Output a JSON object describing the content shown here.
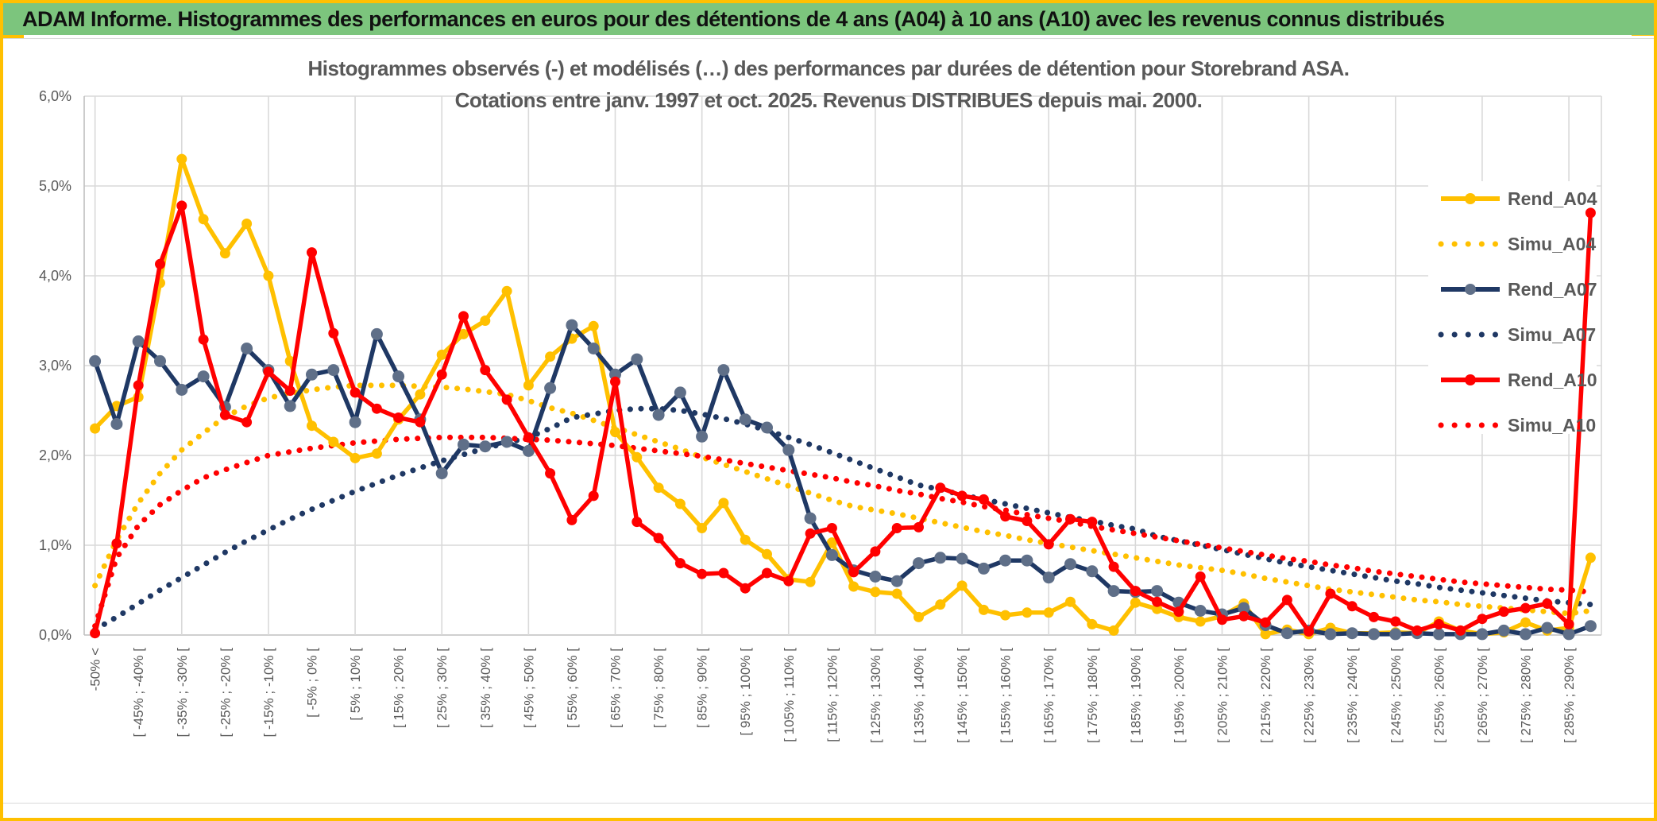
{
  "header": {
    "title": "ADAM Informe. Histogrammes des performances en euros pour des détentions de 4 ans (A04) à 10 ans (A10) avec les revenus connus distribués"
  },
  "chart_data": {
    "type": "line",
    "title_line1": "Histogrammes observés (-) et modélisés (…) des performances par durées de détention pour Storebrand ASA.",
    "title_line2": "Cotations entre janv. 1997 et oct. 2025. Revenus DISTRIBUES depuis mai. 2000.",
    "ylim": [
      0,
      6
    ],
    "y_tick_labels": [
      "0,0%",
      "1,0%",
      "2,0%",
      "3,0%",
      "4,0%",
      "5,0%",
      "6,0%"
    ],
    "n_points": 70,
    "x_tick_every_other_point": true,
    "x_tick_labels": [
      "-50% <",
      "[ -45% ; -40% [",
      "[ -35% ; -30% [",
      "[ -25% ; -20% [",
      "[ -15% ; -10% [",
      "[ -5% ; 0% [",
      "[ 5% ; 10% [",
      "[ 15% ; 20% [",
      "[ 25% ; 30% [",
      "[ 35% ; 40% [",
      "[ 45% ; 50% [",
      "[ 55% ; 60% [",
      "[ 65% ; 70% [",
      "[ 75% ; 80% [",
      "[ 85% ; 90% [",
      "[ 95% ; 100% [",
      "[ 105% ; 110% [",
      "[ 115% ; 120% [",
      "[ 125% ; 130% [",
      "[ 135% ; 140% [",
      "[ 145% ; 150% [",
      "[ 155% ; 160% [",
      "[ 165% ; 170% [",
      "[ 175% ; 180% [",
      "[ 185% ; 190% [",
      "[ 195% ; 200% [",
      "[ 205% ; 210% [",
      "[ 215% ; 220% [",
      "[ 225% ; 230% [",
      "[ 235% ; 240% [",
      "[ 245% ; 250% [",
      "[ 255% ; 260% [",
      "[ 265% ; 270% [",
      "[ 275% ; 280% [",
      "[ 285% ; 290% ["
    ],
    "grid_color": "#D9D9D9",
    "axis_text_color": "#595959",
    "legend_position": "right-inside",
    "series": [
      {
        "name": "Rend_A04",
        "style": "solid",
        "color": "#FFC000",
        "marker_color": "#FFC000",
        "values": [
          2.3,
          2.55,
          2.65,
          3.92,
          5.3,
          4.63,
          4.25,
          4.58,
          4.0,
          3.05,
          2.33,
          2.15,
          1.97,
          2.02,
          2.4,
          2.68,
          3.12,
          3.35,
          3.5,
          3.83,
          2.78,
          3.1,
          3.3,
          3.44,
          2.26,
          1.98,
          1.64,
          1.46,
          1.19,
          1.47,
          1.06,
          0.9,
          0.62,
          0.59,
          1.03,
          0.54,
          0.48,
          0.46,
          0.2,
          0.34,
          0.55,
          0.28,
          0.22,
          0.25,
          0.25,
          0.37,
          0.12,
          0.05,
          0.36,
          0.29,
          0.2,
          0.15,
          0.21,
          0.35,
          0.01,
          0.06,
          0.01,
          0.08,
          0.02,
          0.02,
          0.03,
          0.02,
          0.15,
          0.05,
          0.01,
          0.03,
          0.14,
          0.05,
          0.08,
          0.86
        ]
      },
      {
        "name": "Simu_A04",
        "style": "dotted",
        "color": "#FFC000",
        "marker_color": "#FFC000",
        "values": [
          0.55,
          1.06,
          1.47,
          1.8,
          2.06,
          2.25,
          2.43,
          2.55,
          2.64,
          2.69,
          2.73,
          2.76,
          2.78,
          2.78,
          2.78,
          2.77,
          2.76,
          2.74,
          2.71,
          2.68,
          2.61,
          2.53,
          2.47,
          2.39,
          2.31,
          2.23,
          2.15,
          2.07,
          1.98,
          1.9,
          1.82,
          1.74,
          1.66,
          1.58,
          1.5,
          1.43,
          1.39,
          1.35,
          1.3,
          1.25,
          1.2,
          1.15,
          1.11,
          1.06,
          1.02,
          0.98,
          0.94,
          0.9,
          0.86,
          0.82,
          0.78,
          0.75,
          0.72,
          0.68,
          0.63,
          0.59,
          0.55,
          0.51,
          0.48,
          0.45,
          0.42,
          0.39,
          0.37,
          0.34,
          0.32,
          0.3,
          0.28,
          0.26,
          0.24,
          0.27
        ]
      },
      {
        "name": "Rend_A07",
        "style": "solid",
        "color": "#1F3864",
        "marker_color": "#5F6F88",
        "values": [
          3.05,
          2.35,
          3.27,
          3.05,
          2.73,
          2.88,
          2.54,
          3.19,
          2.95,
          2.55,
          2.9,
          2.95,
          2.37,
          3.35,
          2.88,
          2.4,
          1.8,
          2.12,
          2.1,
          2.15,
          2.05,
          2.75,
          3.45,
          3.19,
          2.9,
          3.07,
          2.45,
          2.7,
          2.21,
          2.95,
          2.4,
          2.31,
          2.06,
          1.3,
          0.89,
          0.72,
          0.65,
          0.6,
          0.8,
          0.86,
          0.85,
          0.74,
          0.83,
          0.83,
          0.64,
          0.79,
          0.71,
          0.49,
          0.48,
          0.49,
          0.36,
          0.27,
          0.23,
          0.3,
          0.11,
          0.02,
          0.05,
          0.01,
          0.02,
          0.01,
          0.01,
          0.02,
          0.01,
          0.01,
          0.01,
          0.05,
          0.01,
          0.08,
          0.01,
          0.1
        ]
      },
      {
        "name": "Simu_A07",
        "style": "dotted",
        "color": "#1F3864",
        "marker_color": "#1F3864",
        "values": [
          0.06,
          0.2,
          0.35,
          0.5,
          0.64,
          0.78,
          0.92,
          1.05,
          1.17,
          1.29,
          1.4,
          1.5,
          1.6,
          1.69,
          1.78,
          1.86,
          1.94,
          2.01,
          2.08,
          2.14,
          2.2,
          2.3,
          2.42,
          2.46,
          2.5,
          2.52,
          2.52,
          2.5,
          2.46,
          2.41,
          2.35,
          2.28,
          2.2,
          2.12,
          2.03,
          1.94,
          1.85,
          1.76,
          1.67,
          1.62,
          1.56,
          1.51,
          1.46,
          1.41,
          1.36,
          1.31,
          1.27,
          1.22,
          1.18,
          1.1,
          1.05,
          1.0,
          0.95,
          0.9,
          0.85,
          0.8,
          0.76,
          0.72,
          0.68,
          0.64,
          0.6,
          0.57,
          0.53,
          0.5,
          0.47,
          0.44,
          0.41,
          0.38,
          0.36,
          0.34
        ]
      },
      {
        "name": "Rend_A10",
        "style": "solid",
        "color": "#FF0000",
        "marker_color": "#FF0000",
        "values": [
          0.02,
          1.02,
          2.78,
          4.13,
          4.78,
          3.29,
          2.45,
          2.37,
          2.93,
          2.72,
          4.26,
          3.36,
          2.7,
          2.52,
          2.42,
          2.37,
          2.9,
          3.55,
          2.95,
          2.62,
          2.2,
          1.8,
          1.28,
          1.55,
          2.82,
          1.26,
          1.08,
          0.8,
          0.68,
          0.69,
          0.52,
          0.69,
          0.6,
          1.13,
          1.19,
          0.7,
          0.93,
          1.19,
          1.2,
          1.64,
          1.55,
          1.51,
          1.32,
          1.27,
          1.01,
          1.29,
          1.26,
          0.76,
          0.49,
          0.37,
          0.26,
          0.65,
          0.17,
          0.21,
          0.14,
          0.39,
          0.04,
          0.46,
          0.32,
          0.2,
          0.15,
          0.05,
          0.12,
          0.05,
          0.18,
          0.26,
          0.3,
          0.35,
          0.12,
          4.7
        ]
      },
      {
        "name": "Simu_A10",
        "style": "dotted",
        "color": "#FF0000",
        "marker_color": "#FF0000",
        "values": [
          0.1,
          0.86,
          1.22,
          1.45,
          1.61,
          1.75,
          1.84,
          1.92,
          2.0,
          2.04,
          2.08,
          2.11,
          2.14,
          2.16,
          2.18,
          2.19,
          2.2,
          2.2,
          2.2,
          2.19,
          2.18,
          2.17,
          2.15,
          2.13,
          2.11,
          2.08,
          2.05,
          2.02,
          1.99,
          1.95,
          1.91,
          1.87,
          1.83,
          1.79,
          1.75,
          1.7,
          1.66,
          1.61,
          1.57,
          1.52,
          1.48,
          1.43,
          1.39,
          1.34,
          1.3,
          1.26,
          1.21,
          1.17,
          1.13,
          1.09,
          1.05,
          1.01,
          0.97,
          0.93,
          0.89,
          0.85,
          0.82,
          0.78,
          0.75,
          0.71,
          0.68,
          0.65,
          0.62,
          0.59,
          0.57,
          0.55,
          0.53,
          0.51,
          0.5,
          0.48
        ]
      }
    ]
  },
  "colors": {
    "header_green": "#7CC57D",
    "frame_gold": "#FFC000",
    "grid": "#D9D9D9",
    "text_gray": "#595959"
  }
}
